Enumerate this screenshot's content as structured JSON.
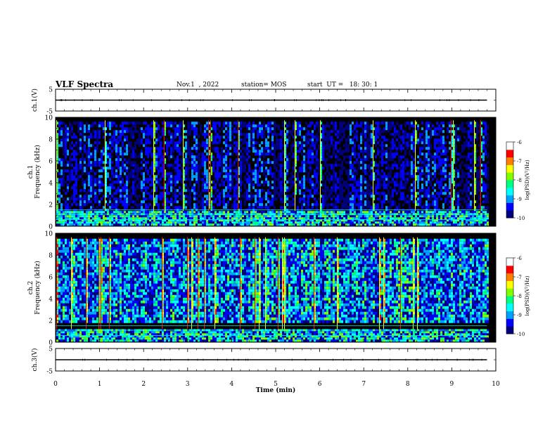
{
  "header": {
    "title": "VLF Spectra",
    "date": "Nov.1  , 2022",
    "station": "station= MOS",
    "start_time": "start  UT =   18: 30: 1"
  },
  "colors": {
    "background": "#000000",
    "spectrum": [
      "#00007f",
      "#0000ff",
      "#00a0ff",
      "#00ffff",
      "#00ff80",
      "#80ff00",
      "#ffff00",
      "#ff8000",
      "#ff0000",
      "#ffffff"
    ],
    "trace": "#000000"
  },
  "chart_data": [
    {
      "type": "line",
      "panel": "ch1-waveform",
      "ylabel": "ch.1(V)",
      "ylim": [
        -5,
        5
      ],
      "yticks": [
        "5",
        "-5"
      ],
      "x": [
        0,
        9.8
      ],
      "y": [
        0,
        0
      ]
    },
    {
      "type": "heatmap",
      "panel": "ch1-spectrogram",
      "ylabel": "ch.1\nFrequency (kHz)",
      "ylim": [
        0,
        10
      ],
      "yticks": [
        "10",
        "8",
        "6",
        "4",
        "2",
        "0"
      ],
      "x_range_min": [
        0,
        9.8
      ],
      "band_khz": [
        0.3,
        9.6
      ],
      "low_band_khz": [
        0.2,
        1.4
      ],
      "colorbar": {
        "label": "log(PSD)(V²/Hz)",
        "range": [
          -10,
          -6
        ],
        "ticks": [
          "-6",
          "-7",
          "-8",
          "-9",
          "-10"
        ]
      }
    },
    {
      "type": "heatmap",
      "panel": "ch2-spectrogram",
      "ylabel": "ch.2\nFrequency (kHz)",
      "ylim": [
        0,
        10
      ],
      "yticks": [
        "10",
        "8",
        "6",
        "4",
        "2",
        "0"
      ],
      "x_range_min": [
        0,
        9.8
      ],
      "band_khz": [
        2.0,
        9.5
      ],
      "low_band_khz": [
        0.2,
        1.2
      ],
      "colorbar": {
        "label": "log(PSD)(V²/Hz)",
        "range": [
          -10,
          -6
        ],
        "ticks": [
          "-6",
          "-7",
          "-8",
          "-9",
          "-10"
        ]
      }
    },
    {
      "type": "line",
      "panel": "ch3-waveform",
      "ylabel": "ch.3(V)",
      "ylim": [
        -5,
        5
      ],
      "yticks": [
        "5",
        "-5"
      ],
      "x": [
        0,
        9.8
      ],
      "y": [
        0,
        0
      ]
    }
  ],
  "xaxis": {
    "label": "Time (min)",
    "range": [
      0,
      10
    ],
    "ticks": [
      "0",
      "1",
      "2",
      "3",
      "4",
      "5",
      "6",
      "7",
      "8",
      "9",
      "10"
    ]
  }
}
